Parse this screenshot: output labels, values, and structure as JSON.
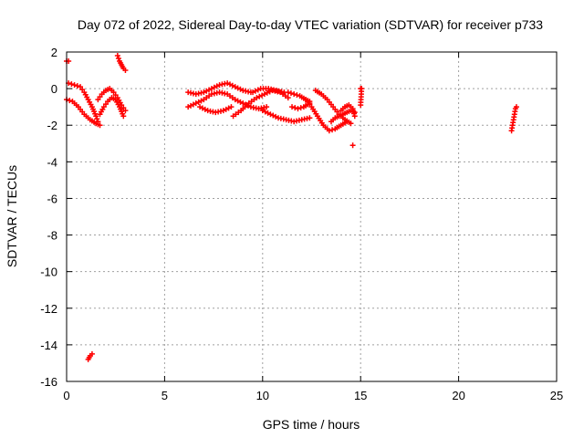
{
  "chart_data": {
    "type": "scatter",
    "title": "Day 072 of 2022, Sidereal Day-to-day VTEC variation (SDTVAR) for receiver p733",
    "xlabel": "GPS time / hours",
    "ylabel": "SDTVAR / TECUs",
    "xlim": [
      0,
      25
    ],
    "ylim": [
      -16,
      2
    ],
    "xticks": [
      0,
      5,
      10,
      15,
      20,
      25
    ],
    "yticks": [
      -16,
      -14,
      -12,
      -10,
      -8,
      -6,
      -4,
      -2,
      0,
      2
    ],
    "grid": true,
    "marker": "plus",
    "series_color": "#ff0000",
    "segments": [
      {
        "name": "arc-a",
        "points": [
          [
            0.0,
            -0.6
          ],
          [
            0.3,
            -0.7
          ],
          [
            0.6,
            -1.0
          ],
          [
            0.9,
            -1.4
          ],
          [
            1.2,
            -1.7
          ],
          [
            1.5,
            -1.9
          ],
          [
            1.7,
            -2.0
          ]
        ]
      },
      {
        "name": "arc-b",
        "points": [
          [
            0.1,
            0.3
          ],
          [
            0.4,
            0.2
          ],
          [
            0.7,
            0.1
          ],
          [
            0.9,
            -0.2
          ],
          [
            1.1,
            -0.6
          ],
          [
            1.3,
            -1.0
          ],
          [
            1.5,
            -1.5
          ],
          [
            1.6,
            -1.8
          ]
        ]
      },
      {
        "name": "arc-c",
        "points": [
          [
            1.6,
            -0.6
          ],
          [
            1.8,
            -0.3
          ],
          [
            2.0,
            -0.1
          ],
          [
            2.2,
            0.0
          ],
          [
            2.4,
            -0.2
          ],
          [
            2.6,
            -0.5
          ],
          [
            2.8,
            -0.9
          ],
          [
            3.0,
            -1.2
          ]
        ]
      },
      {
        "name": "arc-d",
        "points": [
          [
            1.7,
            -1.4
          ],
          [
            1.9,
            -1.0
          ],
          [
            2.1,
            -0.7
          ],
          [
            2.3,
            -0.5
          ],
          [
            2.5,
            -0.6
          ],
          [
            2.7,
            -1.0
          ],
          [
            2.9,
            -1.5
          ]
        ]
      },
      {
        "name": "arc-e",
        "points": [
          [
            2.6,
            1.8
          ],
          [
            2.7,
            1.5
          ],
          [
            2.8,
            1.3
          ],
          [
            2.9,
            1.1
          ],
          [
            3.0,
            1.0
          ]
        ]
      },
      {
        "name": "arc-f",
        "points": [
          [
            0.0,
            1.5
          ],
          [
            0.1,
            1.5
          ]
        ]
      },
      {
        "name": "arc-g",
        "points": [
          [
            1.1,
            -14.8
          ],
          [
            1.2,
            -14.6
          ],
          [
            1.3,
            -14.5
          ]
        ]
      },
      {
        "name": "arc-h",
        "points": [
          [
            6.2,
            -0.2
          ],
          [
            6.6,
            -0.3
          ],
          [
            7.0,
            -0.2
          ],
          [
            7.4,
            0.0
          ],
          [
            7.8,
            0.2
          ],
          [
            8.2,
            0.3
          ],
          [
            8.6,
            0.1
          ],
          [
            9.0,
            -0.1
          ],
          [
            9.4,
            -0.2
          ]
        ]
      },
      {
        "name": "arc-i",
        "points": [
          [
            6.2,
            -1.0
          ],
          [
            6.6,
            -0.8
          ],
          [
            7.0,
            -0.6
          ],
          [
            7.4,
            -0.3
          ],
          [
            7.8,
            -0.2
          ],
          [
            8.2,
            -0.3
          ],
          [
            8.6,
            -0.6
          ],
          [
            9.0,
            -0.8
          ],
          [
            9.4,
            -1.0
          ],
          [
            9.8,
            -1.1
          ],
          [
            10.2,
            -1.0
          ]
        ]
      },
      {
        "name": "arc-j",
        "points": [
          [
            6.8,
            -1.0
          ],
          [
            7.2,
            -1.2
          ],
          [
            7.6,
            -1.3
          ],
          [
            8.0,
            -1.2
          ],
          [
            8.4,
            -1.0
          ]
        ]
      },
      {
        "name": "arc-k",
        "points": [
          [
            8.5,
            -1.5
          ],
          [
            8.9,
            -1.2
          ],
          [
            9.3,
            -0.8
          ],
          [
            9.7,
            -0.5
          ],
          [
            10.1,
            -0.3
          ],
          [
            10.5,
            -0.1
          ],
          [
            10.9,
            -0.2
          ],
          [
            11.3,
            -0.5
          ]
        ]
      },
      {
        "name": "arc-l",
        "points": [
          [
            9.5,
            -0.2
          ],
          [
            9.9,
            0.0
          ],
          [
            10.3,
            0.0
          ],
          [
            10.7,
            -0.1
          ],
          [
            11.1,
            -0.2
          ]
        ]
      },
      {
        "name": "arc-m",
        "points": [
          [
            10.0,
            -1.2
          ],
          [
            10.4,
            -1.4
          ],
          [
            10.8,
            -1.6
          ],
          [
            11.2,
            -1.7
          ],
          [
            11.6,
            -1.8
          ],
          [
            12.0,
            -1.7
          ],
          [
            12.4,
            -1.6
          ]
        ]
      },
      {
        "name": "arc-n",
        "points": [
          [
            11.3,
            -0.2
          ],
          [
            11.6,
            -0.3
          ],
          [
            11.9,
            -0.4
          ],
          [
            12.2,
            -0.6
          ],
          [
            12.4,
            -0.7
          ]
        ]
      },
      {
        "name": "arc-o",
        "points": [
          [
            11.5,
            -1.0
          ],
          [
            11.8,
            -1.1
          ],
          [
            12.1,
            -1.0
          ],
          [
            12.4,
            -0.8
          ]
        ]
      },
      {
        "name": "arc-p",
        "points": [
          [
            12.2,
            -0.6
          ],
          [
            12.5,
            -1.0
          ],
          [
            12.8,
            -1.5
          ],
          [
            13.1,
            -2.0
          ],
          [
            13.4,
            -2.3
          ],
          [
            13.7,
            -2.2
          ],
          [
            14.0,
            -2.0
          ],
          [
            14.3,
            -1.8
          ]
        ]
      },
      {
        "name": "arc-q",
        "points": [
          [
            12.7,
            -0.1
          ],
          [
            13.0,
            -0.3
          ],
          [
            13.3,
            -0.6
          ],
          [
            13.6,
            -1.0
          ],
          [
            13.9,
            -1.4
          ],
          [
            14.2,
            -1.7
          ],
          [
            14.5,
            -1.9
          ]
        ]
      },
      {
        "name": "arc-r",
        "points": [
          [
            13.5,
            -1.8
          ],
          [
            13.7,
            -1.6
          ],
          [
            13.9,
            -1.5
          ],
          [
            14.1,
            -1.4
          ],
          [
            14.3,
            -1.3
          ],
          [
            14.5,
            -1.2
          ],
          [
            14.7,
            -1.3
          ]
        ]
      },
      {
        "name": "arc-s",
        "points": [
          [
            14.0,
            -1.2
          ],
          [
            14.2,
            -1.0
          ],
          [
            14.4,
            -0.9
          ],
          [
            14.6,
            -1.1
          ],
          [
            14.7,
            -1.5
          ]
        ]
      },
      {
        "name": "arc-t",
        "points": [
          [
            14.6,
            -3.1
          ]
        ]
      },
      {
        "name": "arc-u",
        "points": [
          [
            15.0,
            0.0
          ],
          [
            15.05,
            0.0
          ],
          [
            15.0,
            -0.9
          ]
        ]
      },
      {
        "name": "arc-v",
        "points": [
          [
            22.7,
            -2.3
          ],
          [
            22.75,
            -2.0
          ],
          [
            22.8,
            -1.7
          ],
          [
            22.85,
            -1.4
          ],
          [
            22.9,
            -1.1
          ],
          [
            22.95,
            -1.0
          ]
        ]
      }
    ]
  }
}
